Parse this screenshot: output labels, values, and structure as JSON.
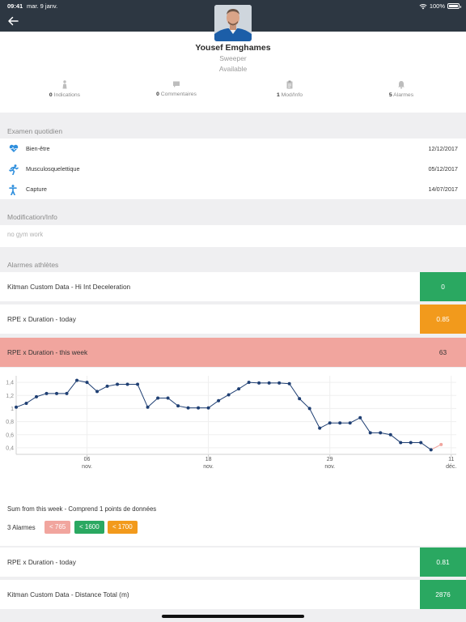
{
  "status_bar": {
    "time": "09:41",
    "date": "mar. 9 janv.",
    "battery": "100%",
    "battery_level": 1.0
  },
  "profile": {
    "name": "Yousef Emghames",
    "position": "Sweeper",
    "status": "Available",
    "stats": [
      {
        "count": "0",
        "label": "Indications",
        "icon": "person-icon"
      },
      {
        "count": "0",
        "label": "Commentaires",
        "icon": "comment-icon"
      },
      {
        "count": "1",
        "label": "Mod/Info",
        "icon": "clipboard-icon"
      },
      {
        "count": "5",
        "label": "Alarmes",
        "icon": "bell-icon"
      }
    ]
  },
  "daily_exam": {
    "title": "Examen quotidien",
    "rows": [
      {
        "label": "Bien-être",
        "date": "12/12/2017",
        "icon": "heart-pulse-icon"
      },
      {
        "label": "Musculosquelettique",
        "date": "05/12/2017",
        "icon": "runner-icon"
      },
      {
        "label": "Capture",
        "date": "14/07/2017",
        "icon": "figure-icon"
      }
    ]
  },
  "modification": {
    "title": "Modification/Info",
    "text": "no gym work"
  },
  "alarms": {
    "title": "Alarmes athlètes",
    "items": [
      {
        "label": "Kitman Custom Data - Hi Int Deceleration",
        "value": "0",
        "color": "#2aa861"
      },
      {
        "label": "RPE x Duration - today",
        "value": "0.85",
        "color": "#f29a1c"
      },
      {
        "label": "RPE x Duration - this week",
        "value": "63",
        "color": "#f1a59e"
      }
    ],
    "summary": {
      "title": "Sum from this week - Comprend 1 points de données",
      "count_label": "3 Alarmes",
      "thresholds": [
        {
          "label": "< 765",
          "color": "#f1a59e"
        },
        {
          "label": "< 1600",
          "color": "#2aa861"
        },
        {
          "label": "< 1700",
          "color": "#f29a1c"
        }
      ]
    },
    "more": [
      {
        "label": "RPE x Duration - today",
        "value": "0.81",
        "color": "#2aa861"
      },
      {
        "label": "Kitman Custom Data - Distance Total (m)",
        "value": "2876",
        "color": "#2aa861"
      }
    ]
  },
  "chart_data": {
    "type": "line",
    "title": "",
    "xlabel": "",
    "ylabel": "",
    "ylim": [
      0.3,
      1.5
    ],
    "yticks": [
      "1,4",
      "1,2",
      "1",
      "0,8",
      "0,6",
      "0,4"
    ],
    "ytick_values": [
      1.4,
      1.2,
      1.0,
      0.8,
      0.6,
      0.4
    ],
    "xlim": [
      0,
      43.5
    ],
    "xticks": [
      {
        "day": "06",
        "month": "nov.",
        "x": 7
      },
      {
        "day": "18",
        "month": "nov.",
        "x": 19
      },
      {
        "day": "29",
        "month": "nov.",
        "x": 31
      },
      {
        "day": "11",
        "month": "déc.",
        "x": 43
      }
    ],
    "grid": true,
    "line_color": "#1f3f73",
    "highlight_color": "#f1a59e",
    "series": [
      {
        "values": [
          1.02,
          1.08,
          1.18,
          1.23,
          1.23,
          1.23,
          1.43,
          1.4,
          1.26,
          1.34,
          1.37,
          1.37,
          1.37,
          1.02,
          1.16,
          1.16,
          1.04,
          1.01,
          1.01,
          1.01,
          1.12,
          1.21,
          1.3,
          1.4,
          1.39,
          1.39,
          1.39,
          1.38,
          1.15,
          1.0,
          0.7,
          0.78,
          0.78,
          0.78,
          0.86,
          0.63,
          0.63,
          0.6,
          0.48,
          0.48,
          0.48,
          0.37,
          0.45
        ]
      }
    ]
  }
}
